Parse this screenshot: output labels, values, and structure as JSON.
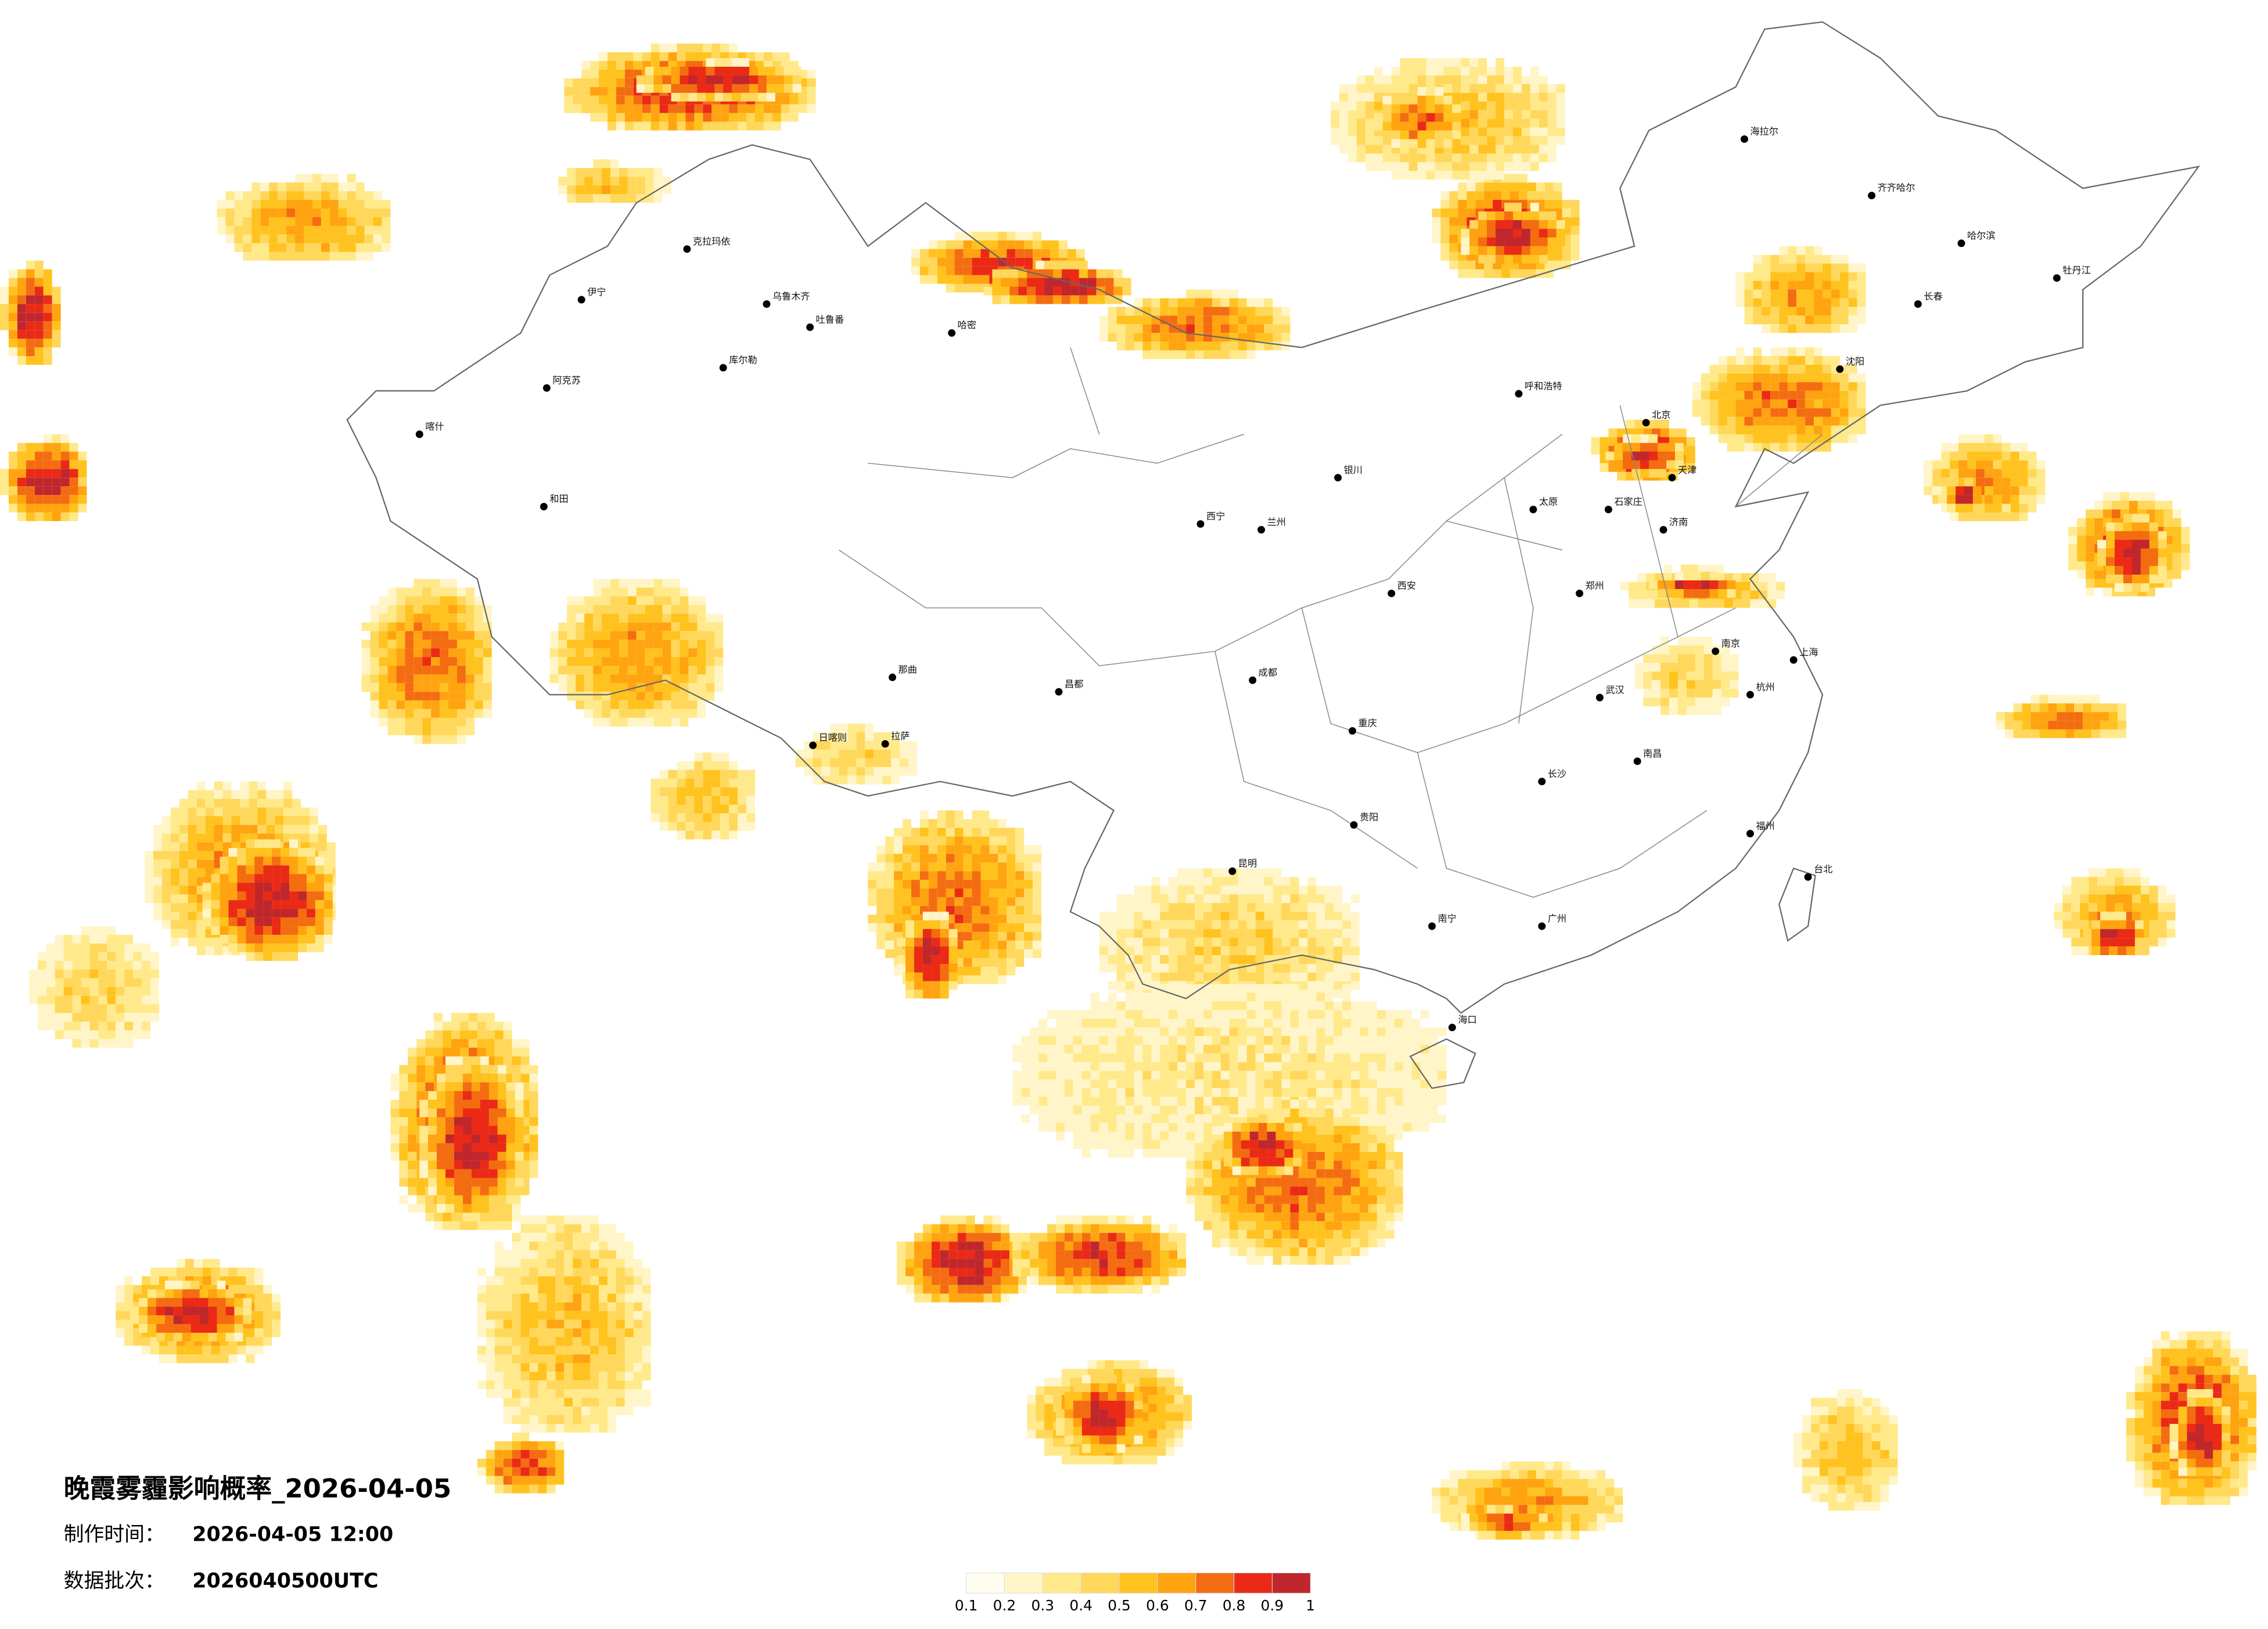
{
  "map": {
    "title": "晚霞雾霾影响概率_2026-04-05",
    "made_label": "制作时间：",
    "made_time": "2026-04-05 12:00",
    "batch_label": "数据批次：",
    "batch": "2026040500UTC",
    "legend": {
      "colors": [
        "#fffdf0",
        "#fff5c8",
        "#ffe98a",
        "#ffd75a",
        "#ffc21e",
        "#ffa310",
        "#f46c12",
        "#ea2a16",
        "#c0272d"
      ],
      "ticks": [
        0.1,
        0.2,
        0.3,
        0.4,
        0.5,
        0.6,
        0.7,
        0.8,
        0.9,
        1
      ]
    },
    "cities": [
      "克拉玛依",
      "乌鲁木齐",
      "伊宁",
      "吐鲁番",
      "哈密",
      "库尔勒",
      "阿克苏",
      "喀什",
      "和田",
      "那曲",
      "日喀则",
      "拉萨",
      "昌都",
      "西宁",
      "兰州",
      "银川",
      "呼和浩特",
      "北京",
      "天津",
      "石家庄",
      "太原",
      "郑州",
      "西安",
      "成都",
      "重庆",
      "贵阳",
      "昆明",
      "南宁",
      "广州",
      "长沙",
      "武汉",
      "南昌",
      "杭州",
      "上海",
      "南京",
      "济南",
      "沈阳",
      "长春",
      "哈尔滨",
      "福州",
      "台北",
      "海口",
      "海拉尔",
      "齐齐哈尔",
      "牡丹江"
    ]
  }
}
